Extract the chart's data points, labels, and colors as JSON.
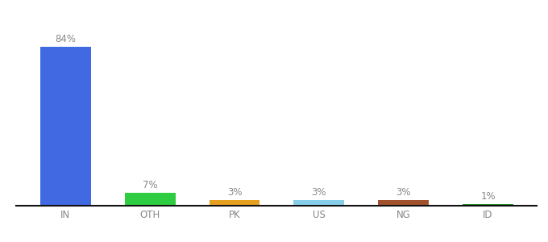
{
  "categories": [
    "IN",
    "OTH",
    "PK",
    "US",
    "NG",
    "ID"
  ],
  "values": [
    84,
    7,
    3,
    3,
    3,
    1
  ],
  "labels": [
    "84%",
    "7%",
    "3%",
    "3%",
    "3%",
    "1%"
  ],
  "bar_colors": [
    "#4169e1",
    "#2ecc40",
    "#e6a020",
    "#87ceeb",
    "#a0522d",
    "#228b22"
  ],
  "background_color": "#ffffff",
  "ylim": [
    0,
    96
  ],
  "label_fontsize": 8.5,
  "tick_fontsize": 8.5,
  "label_color": "#888888",
  "tick_color": "#888888"
}
